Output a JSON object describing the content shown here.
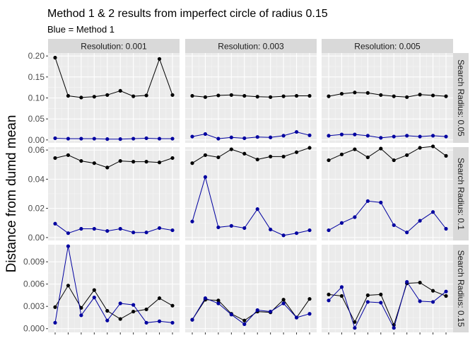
{
  "chart_data": {
    "type": "line",
    "title": "Method 1 & 2 results from imperfect circle of radius 0.15",
    "subtitle": "Blue = Method 1",
    "ylabel": "Distance from dumd mean",
    "xlabel": "",
    "grid": true,
    "col_facets": [
      "Resolution: 0.001",
      "Resolution: 0.003",
      "Resolution: 0.005"
    ],
    "row_facets": [
      "Search Radius: 0.05",
      "Search Radius: 0.1",
      "Search Radius: 0.15"
    ],
    "colors": {
      "series_1": "#0000a0",
      "series_2": "#000000",
      "panel_bg": "#ebebeb",
      "strip_bg": "#d9d9d9"
    },
    "rows": [
      {
        "ylim": [
          -0.007,
          0.207
        ],
        "yticks": [
          0.0,
          0.05,
          0.1,
          0.15,
          0.2
        ],
        "ytick_labels": [
          "0.00",
          "0.05",
          "0.10",
          "0.15",
          "0.20"
        ],
        "panels": [
          {
            "blue": [
              0.004,
              0.003,
              0.003,
              0.003,
              0.002,
              0.002,
              0.003,
              0.004,
              0.003,
              0.003
            ],
            "black": [
              0.196,
              0.105,
              0.101,
              0.103,
              0.107,
              0.117,
              0.104,
              0.106,
              0.193,
              0.107
            ]
          },
          {
            "blue": [
              0.008,
              0.014,
              0.003,
              0.006,
              0.004,
              0.007,
              0.006,
              0.01,
              0.019,
              0.011
            ],
            "black": [
              0.105,
              0.102,
              0.106,
              0.107,
              0.105,
              0.103,
              0.102,
              0.104,
              0.105,
              0.105
            ]
          },
          {
            "blue": [
              0.01,
              0.013,
              0.013,
              0.01,
              0.005,
              0.008,
              0.01,
              0.008,
              0.01,
              0.008
            ],
            "black": [
              0.104,
              0.11,
              0.113,
              0.112,
              0.107,
              0.104,
              0.102,
              0.108,
              0.106,
              0.104
            ]
          }
        ]
      },
      {
        "ylim": [
          -0.002,
          0.062
        ],
        "yticks": [
          0.0,
          0.02,
          0.04,
          0.06
        ],
        "ytick_labels": [
          "0.00",
          "0.02",
          "0.04",
          "0.06"
        ],
        "panels": [
          {
            "blue": [
              0.0095,
              0.003,
              0.006,
              0.006,
              0.0045,
              0.006,
              0.0035,
              0.0035,
              0.0065,
              0.005
            ],
            "black": [
              0.0545,
              0.0565,
              0.0525,
              0.051,
              0.048,
              0.0525,
              0.052,
              0.052,
              0.0515,
              0.0545
            ]
          },
          {
            "blue": [
              0.011,
              0.0415,
              0.007,
              0.008,
              0.0065,
              0.0195,
              0.0055,
              0.0015,
              0.003,
              0.005
            ],
            "black": [
              0.051,
              0.0565,
              0.055,
              0.0605,
              0.0575,
              0.0535,
              0.0555,
              0.0555,
              0.0585,
              0.0615
            ]
          },
          {
            "blue": [
              0.005,
              0.01,
              0.014,
              0.025,
              0.024,
              0.0085,
              0.0035,
              0.0115,
              0.0175,
              0.006
            ],
            "black": [
              0.053,
              0.057,
              0.0605,
              0.055,
              0.061,
              0.053,
              0.0565,
              0.0615,
              0.0625,
              0.056
            ]
          }
        ]
      },
      {
        "ylim": [
          -0.0005,
          0.0113
        ],
        "yticks": [
          0.0,
          0.003,
          0.006,
          0.009
        ],
        "ytick_labels": [
          "0.000",
          "0.003",
          "0.006",
          "0.009"
        ],
        "panels": [
          {
            "blue": [
              0.0008,
              0.0111,
              0.0018,
              0.0042,
              0.0011,
              0.0034,
              0.0032,
              0.0008,
              0.001,
              0.0008
            ],
            "black": [
              0.0029,
              0.0058,
              0.0028,
              0.0052,
              0.0024,
              0.0013,
              0.0023,
              0.0026,
              0.0041,
              0.0031
            ]
          },
          {
            "blue": [
              0.0012,
              0.0041,
              0.0034,
              0.0019,
              0.0006,
              0.0025,
              0.0023,
              0.0034,
              0.0015,
              0.002
            ],
            "black": [
              0.0012,
              0.0039,
              0.0038,
              0.002,
              0.0011,
              0.0023,
              0.0022,
              0.0039,
              0.0015,
              0.004
            ]
          },
          {
            "blue": [
              0.0038,
              0.0056,
              0.0001,
              0.0036,
              0.0035,
              0.0001,
              0.0063,
              0.0037,
              0.0036,
              0.005
            ],
            "black": [
              0.0046,
              0.0044,
              0.0009,
              0.0045,
              0.0046,
              0.0005,
              0.0061,
              0.0062,
              0.0051,
              0.0044
            ]
          }
        ]
      }
    ]
  }
}
